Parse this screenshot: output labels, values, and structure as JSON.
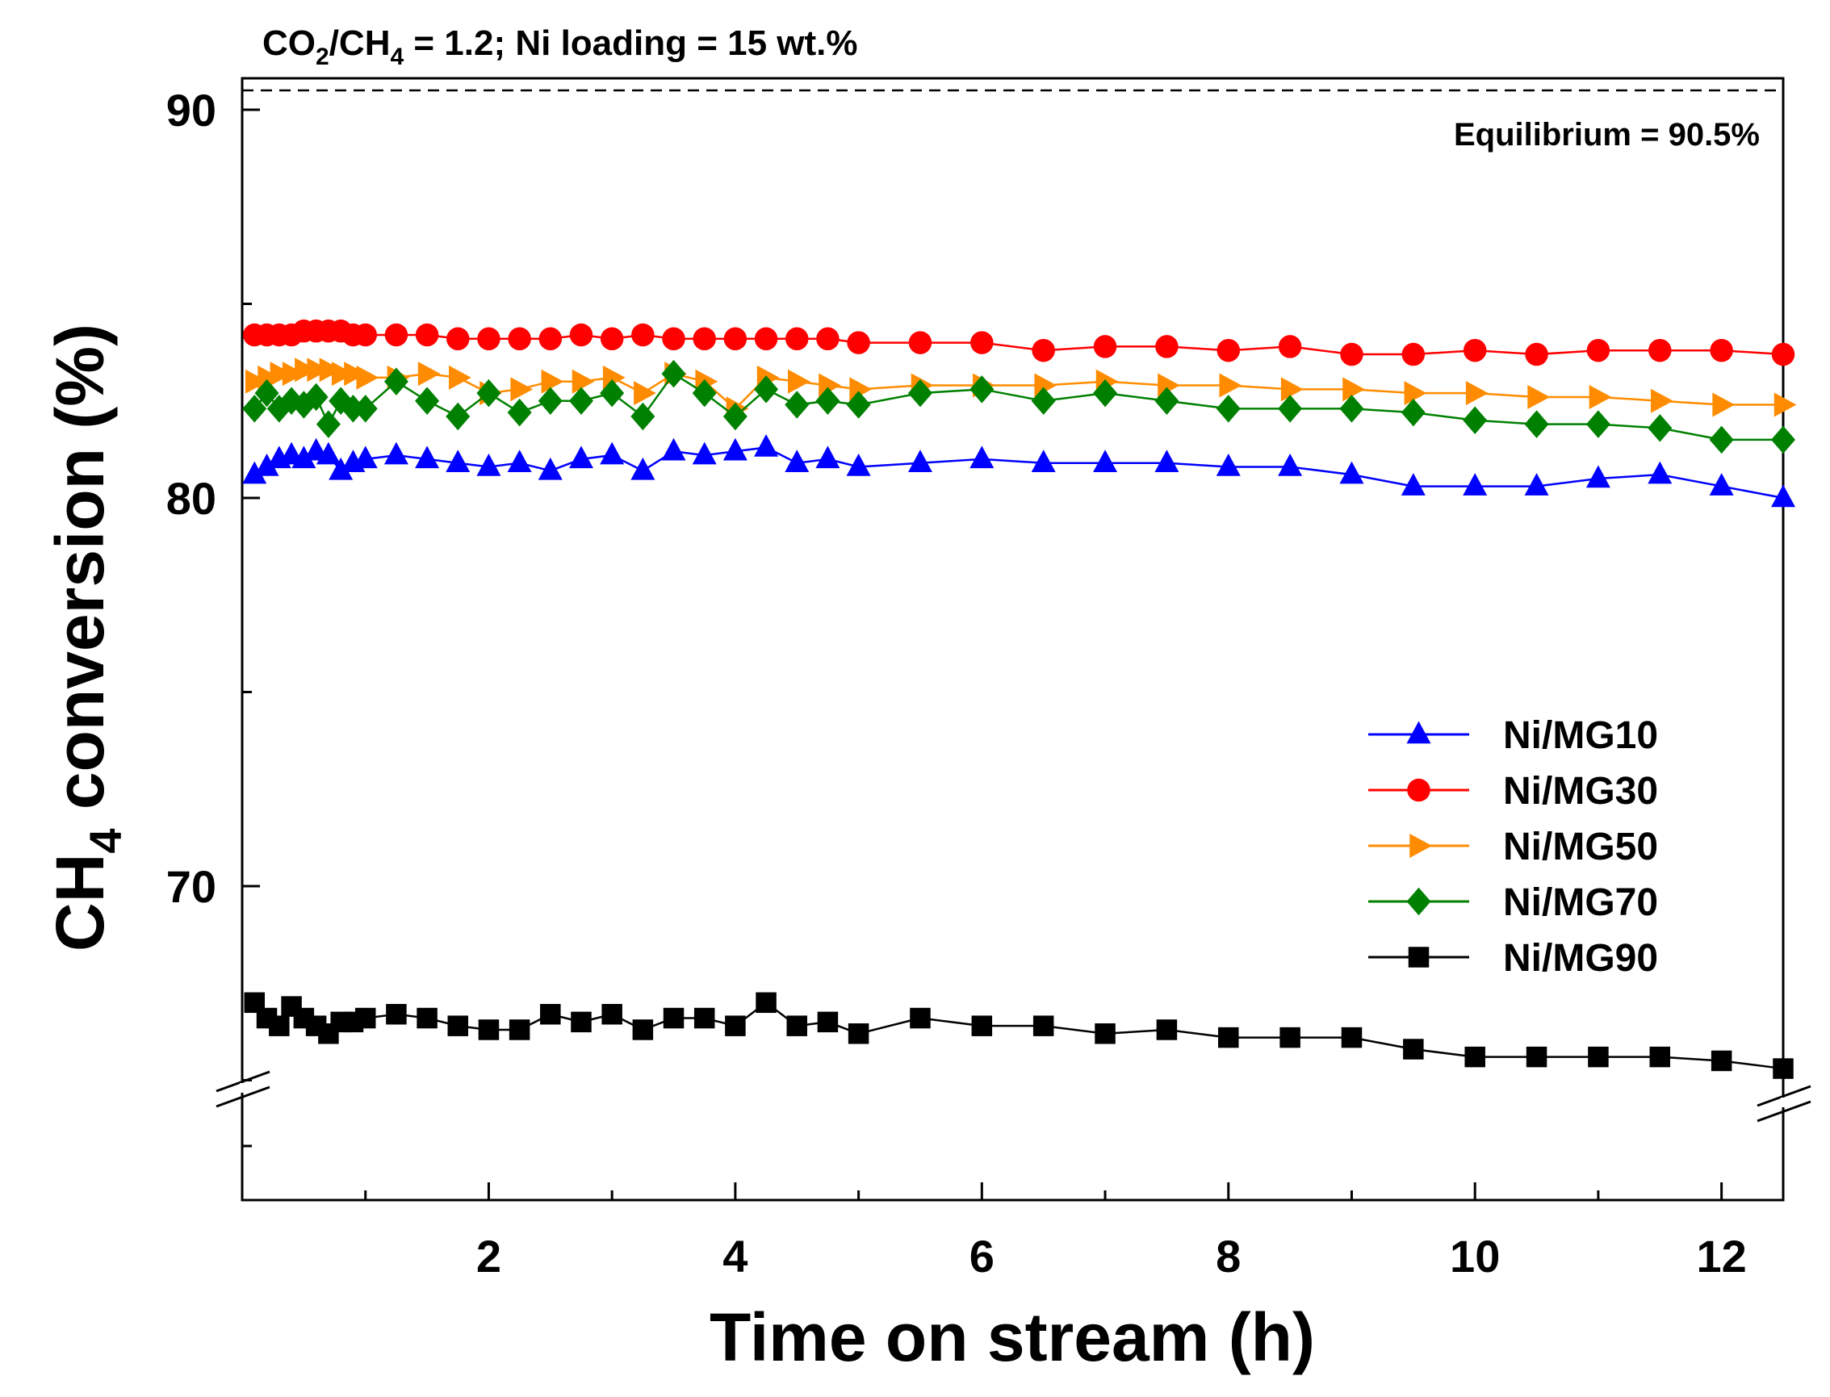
{
  "chart_data": {
    "type": "line",
    "title": "CO2/CH4 = 1.2; Ni loading = 15 wt.%",
    "title_parts": {
      "a": "CO",
      "a_sub": "2",
      "b": "/CH",
      "b_sub": "4",
      "c": " = 1.2; Ni loading = 15 wt.%"
    },
    "xlabel": "Time on stream (h)",
    "ylabel": "CH4 conversion (%)",
    "ylabel_parts": {
      "a": "CH",
      "a_sub": "4",
      "b": " conversion (%)"
    },
    "xlim": [
      0,
      12.5
    ],
    "x_ticks": [
      2,
      4,
      6,
      8,
      10,
      12
    ],
    "y_ticks": [
      70,
      80,
      90
    ],
    "y_axis_break": true,
    "equilibrium": {
      "value": 90.5,
      "label": "Equilibrium = 90.5%"
    },
    "legend_position": "lower-right",
    "series": [
      {
        "name": "Ni/MG10",
        "color": "#0000ff",
        "marker": "triangle-up",
        "x": [
          0.1,
          0.2,
          0.3,
          0.4,
          0.5,
          0.6,
          0.7,
          0.8,
          0.9,
          1.0,
          1.25,
          1.5,
          1.75,
          2.0,
          2.25,
          2.5,
          2.75,
          3.0,
          3.25,
          3.5,
          3.75,
          4.0,
          4.25,
          4.5,
          4.75,
          5.0,
          5.5,
          6.0,
          6.5,
          7.0,
          7.5,
          8.0,
          8.5,
          9.0,
          9.5,
          10.0,
          10.5,
          11.0,
          11.5,
          12.0,
          12.5
        ],
        "values": [
          80.6,
          80.8,
          81.0,
          81.1,
          81.0,
          81.2,
          81.1,
          80.7,
          80.9,
          81.0,
          81.1,
          81.0,
          80.9,
          80.8,
          80.9,
          80.7,
          81.0,
          81.1,
          80.7,
          81.2,
          81.1,
          81.2,
          81.3,
          80.9,
          81.0,
          80.8,
          80.9,
          81.0,
          80.9,
          80.9,
          80.9,
          80.8,
          80.8,
          80.6,
          80.3,
          80.3,
          80.3,
          80.5,
          80.6,
          80.3,
          80.0
        ]
      },
      {
        "name": "Ni/MG30",
        "color": "#ff0000",
        "marker": "circle",
        "x": [
          0.1,
          0.2,
          0.3,
          0.4,
          0.5,
          0.6,
          0.7,
          0.8,
          0.9,
          1.0,
          1.25,
          1.5,
          1.75,
          2.0,
          2.25,
          2.5,
          2.75,
          3.0,
          3.25,
          3.5,
          3.75,
          4.0,
          4.25,
          4.5,
          4.75,
          5.0,
          5.5,
          6.0,
          6.5,
          7.0,
          7.5,
          8.0,
          8.5,
          9.0,
          9.5,
          10.0,
          10.5,
          11.0,
          11.5,
          12.0,
          12.5
        ],
        "values": [
          84.2,
          84.2,
          84.2,
          84.2,
          84.3,
          84.3,
          84.3,
          84.3,
          84.2,
          84.2,
          84.2,
          84.2,
          84.1,
          84.1,
          84.1,
          84.1,
          84.2,
          84.1,
          84.2,
          84.1,
          84.1,
          84.1,
          84.1,
          84.1,
          84.1,
          84.0,
          84.0,
          84.0,
          83.8,
          83.9,
          83.9,
          83.8,
          83.9,
          83.7,
          83.7,
          83.8,
          83.7,
          83.8,
          83.8,
          83.8,
          83.7
        ]
      },
      {
        "name": "Ni/MG50",
        "color": "#ff8c00",
        "marker": "triangle-right",
        "x": [
          0.1,
          0.2,
          0.3,
          0.4,
          0.5,
          0.6,
          0.7,
          0.8,
          0.9,
          1.0,
          1.25,
          1.5,
          1.75,
          2.0,
          2.25,
          2.5,
          2.75,
          3.0,
          3.25,
          3.5,
          3.75,
          4.0,
          4.25,
          4.5,
          4.75,
          5.0,
          5.5,
          6.0,
          6.5,
          7.0,
          7.5,
          8.0,
          8.5,
          9.0,
          9.5,
          10.0,
          10.5,
          11.0,
          11.5,
          12.0,
          12.5
        ],
        "values": [
          83.0,
          83.1,
          83.2,
          83.2,
          83.3,
          83.3,
          83.3,
          83.2,
          83.2,
          83.1,
          83.1,
          83.2,
          83.1,
          82.7,
          82.8,
          83.0,
          83.0,
          83.1,
          82.7,
          83.2,
          83.0,
          82.3,
          83.1,
          83.0,
          82.9,
          82.8,
          82.9,
          82.9,
          82.9,
          83.0,
          82.9,
          82.9,
          82.8,
          82.8,
          82.7,
          82.7,
          82.6,
          82.6,
          82.5,
          82.4,
          82.4
        ]
      },
      {
        "name": "Ni/MG70",
        "color": "#008000",
        "marker": "diamond",
        "x": [
          0.1,
          0.2,
          0.3,
          0.4,
          0.5,
          0.6,
          0.7,
          0.8,
          0.9,
          1.0,
          1.25,
          1.5,
          1.75,
          2.0,
          2.25,
          2.5,
          2.75,
          3.0,
          3.25,
          3.5,
          3.75,
          4.0,
          4.25,
          4.5,
          4.75,
          5.0,
          5.5,
          6.0,
          6.5,
          7.0,
          7.5,
          8.0,
          8.5,
          9.0,
          9.5,
          10.0,
          10.5,
          11.0,
          11.5,
          12.0,
          12.5
        ],
        "values": [
          82.3,
          82.7,
          82.3,
          82.5,
          82.4,
          82.6,
          81.9,
          82.5,
          82.3,
          82.3,
          83.0,
          82.5,
          82.1,
          82.7,
          82.2,
          82.5,
          82.5,
          82.7,
          82.1,
          83.2,
          82.7,
          82.1,
          82.8,
          82.4,
          82.5,
          82.4,
          82.7,
          82.8,
          82.5,
          82.7,
          82.5,
          82.3,
          82.3,
          82.3,
          82.2,
          82.0,
          81.9,
          81.9,
          81.8,
          81.5,
          81.5
        ]
      },
      {
        "name": "Ni/MG90",
        "color": "#000000",
        "marker": "square",
        "x": [
          0.1,
          0.2,
          0.3,
          0.4,
          0.5,
          0.6,
          0.7,
          0.8,
          0.9,
          1.0,
          1.25,
          1.5,
          1.75,
          2.0,
          2.25,
          2.5,
          2.75,
          3.0,
          3.25,
          3.5,
          3.75,
          4.0,
          4.25,
          4.5,
          4.75,
          5.0,
          5.5,
          6.0,
          6.5,
          7.0,
          7.5,
          8.0,
          8.5,
          9.0,
          9.5,
          10.0,
          10.5,
          11.0,
          11.5,
          12.0,
          12.5
        ],
        "values": [
          67.0,
          66.6,
          66.4,
          66.9,
          66.6,
          66.4,
          66.2,
          66.5,
          66.5,
          66.6,
          66.7,
          66.6,
          66.4,
          66.3,
          66.3,
          66.7,
          66.5,
          66.7,
          66.3,
          66.6,
          66.6,
          66.4,
          67.0,
          66.4,
          66.5,
          66.2,
          66.6,
          66.4,
          66.4,
          66.2,
          66.3,
          66.1,
          66.1,
          66.1,
          65.8,
          65.6,
          65.6,
          65.6,
          65.6,
          65.5,
          65.3
        ]
      }
    ]
  }
}
